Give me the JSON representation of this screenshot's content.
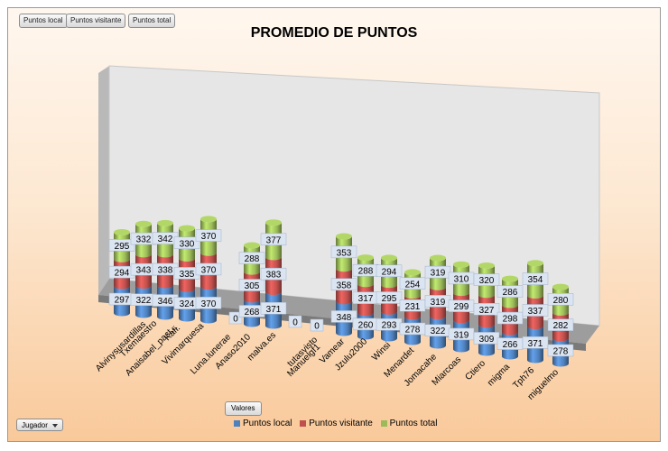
{
  "pivot": {
    "field_buttons": [
      "Puntos local",
      "Puntos visitante",
      "Puntos total"
    ],
    "values_button": "Valores",
    "row_field": "Jugador",
    "row_field_icon": "dropdown-arrow-icon"
  },
  "chart_data": {
    "type": "bar",
    "stacked": true,
    "style": "3d-cylinder",
    "title": "PROMEDIO DE PUNTOS",
    "categories": [
      "Alvinysusardillas",
      "Anaisabel_past...",
      "Txemaestro",
      "Kafi.",
      "Vivimarquesa",
      "Luna.lunerae",
      "Anaso2010",
      "malva.es",
      "tutasvisto",
      "Manuelgf1",
      "Vamear",
      "Jzulu2000",
      "Winsi",
      "Menardet",
      "Jomacahe",
      "Miarcoas",
      "Ctiero",
      "migma",
      "Tph76",
      "miguelmo"
    ],
    "series": [
      {
        "name": "Puntos local",
        "values": [
          297,
          322,
          346,
          324,
          370,
          0,
          268,
          371,
          0,
          0,
          348,
          260,
          293,
          278,
          322,
          319,
          309,
          266,
          371,
          278
        ]
      },
      {
        "name": "Puntos visitante",
        "values": [
          294,
          343,
          338,
          335,
          370,
          null,
          305,
          383,
          null,
          null,
          358,
          317,
          295,
          231,
          319,
          299,
          327,
          298,
          337,
          282
        ]
      },
      {
        "name": "Puntos total",
        "values": [
          295,
          332,
          342,
          330,
          370,
          null,
          288,
          377,
          null,
          null,
          353,
          288,
          294,
          254,
          319,
          310,
          320,
          286,
          354,
          280
        ]
      }
    ],
    "colors": [
      "#4f81bd",
      "#c0504d",
      "#9bbb59"
    ],
    "data_labels": true,
    "legend_position": "bottom",
    "grid": false
  }
}
